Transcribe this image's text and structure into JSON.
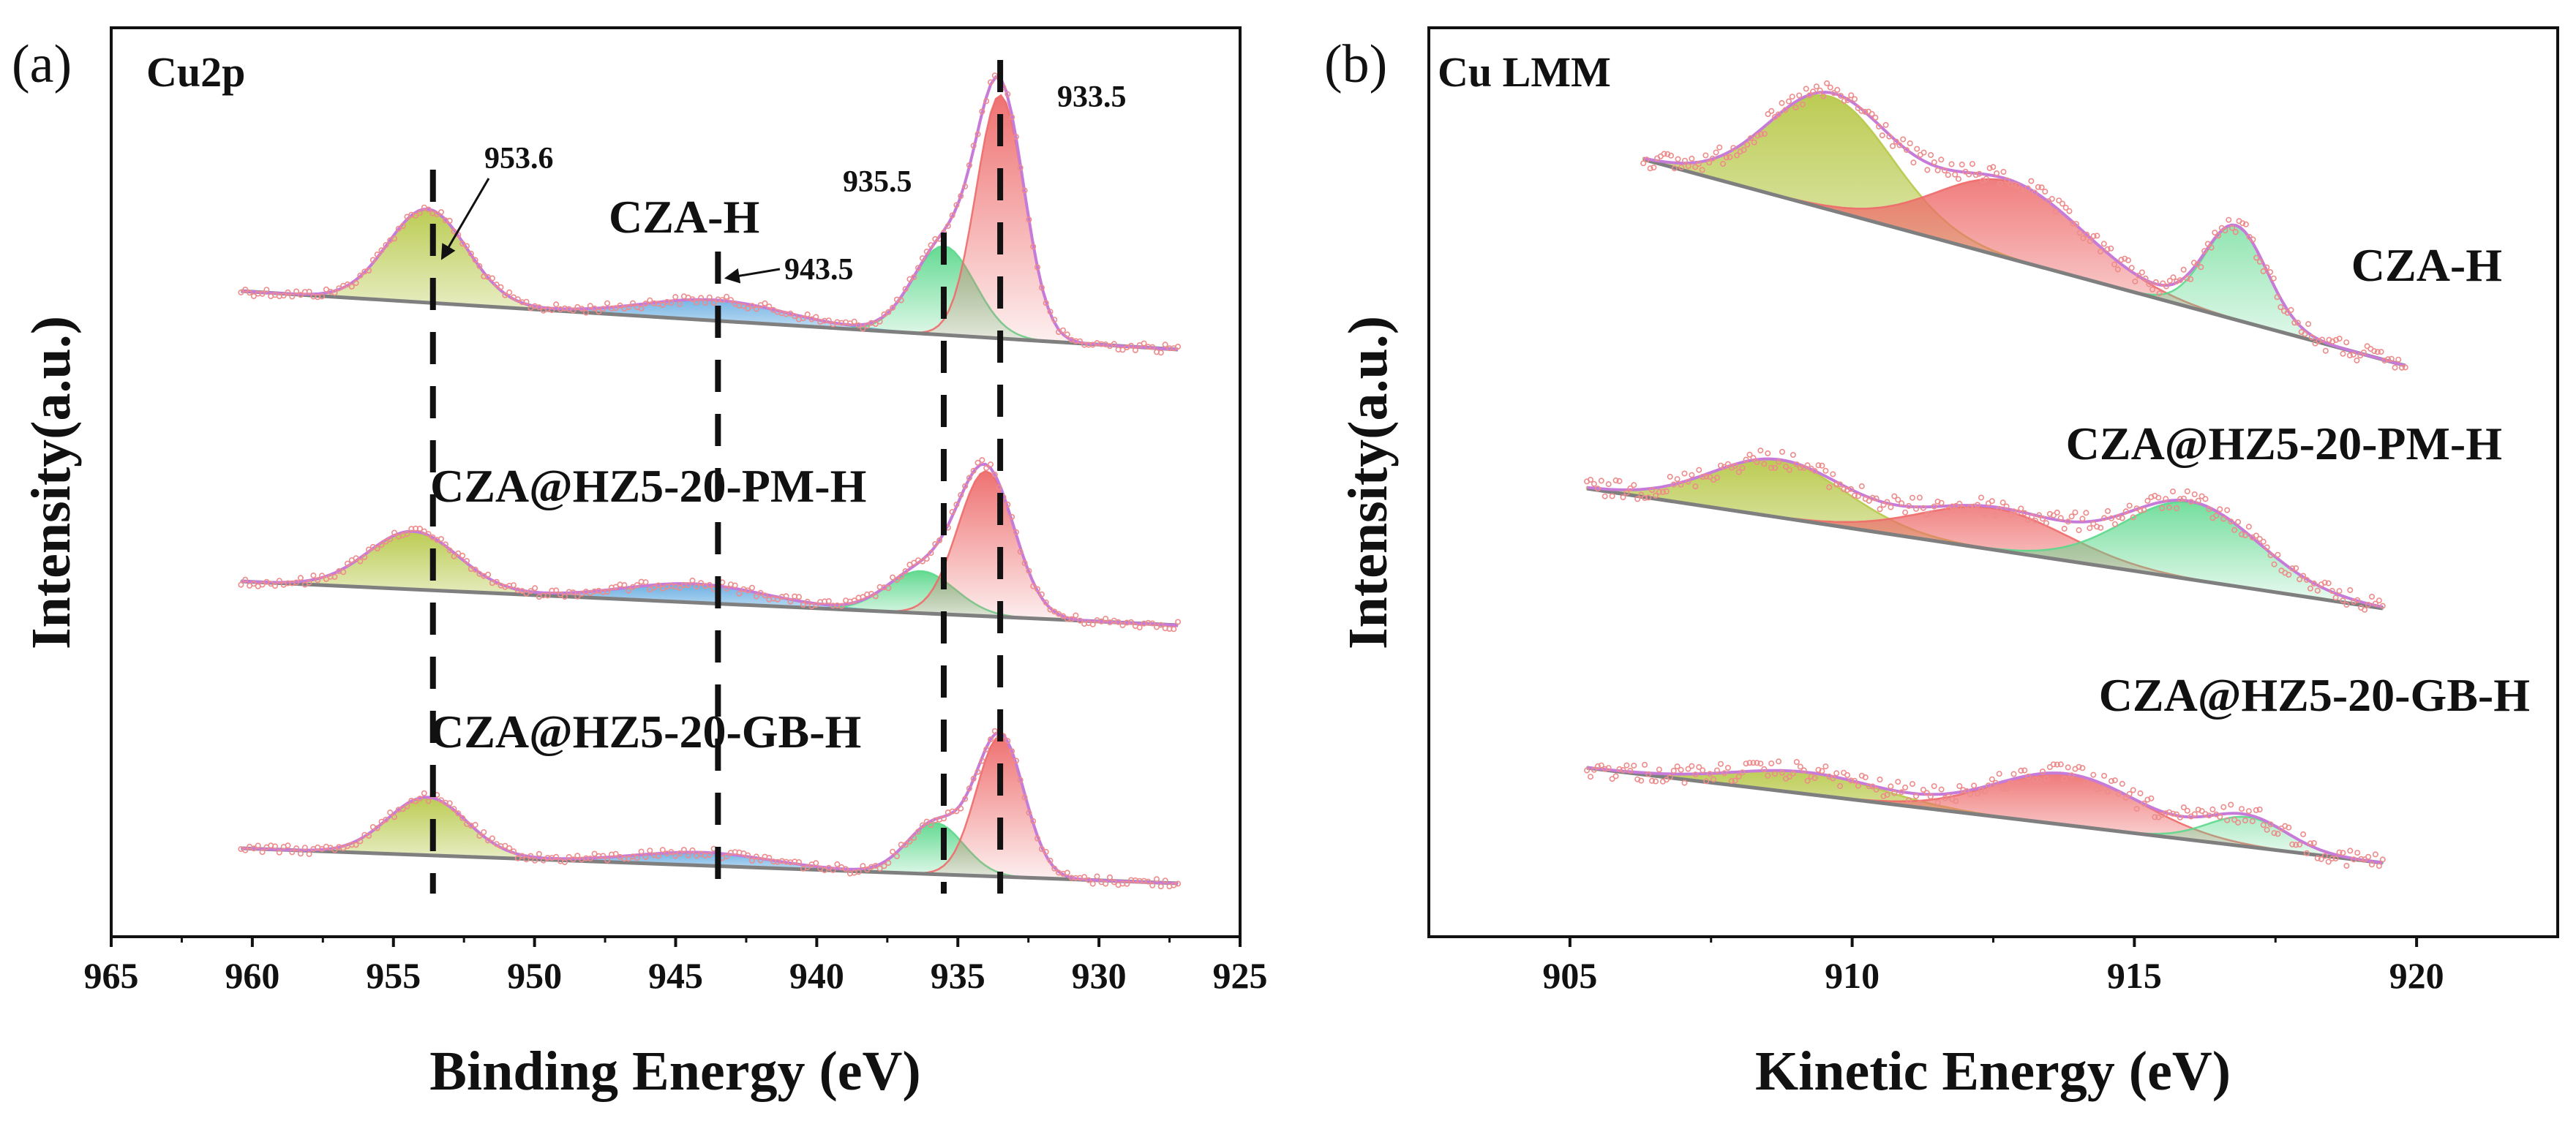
{
  "chart_data": [
    {
      "type": "line",
      "panel_label": "(a)",
      "corner_label": "Cu2p",
      "xlabel": "Binding Energy (eV)",
      "ylabel": "Intensity(a.u.)",
      "xlim": [
        965,
        925
      ],
      "reversed_x": true,
      "x_ticks": [
        "965",
        "960",
        "955",
        "950",
        "945",
        "940",
        "935",
        "930",
        "925"
      ],
      "x_range": [
        960.4,
        927.2
      ],
      "reference_lines": [
        953.6,
        943.5,
        935.5,
        933.5
      ],
      "series": [
        {
          "name": "CZA-H",
          "baseline_start": 0.38,
          "baseline_end": 0.0,
          "components": [
            {
              "center": 953.8,
              "width": 1.4,
              "height": 1.0,
              "color": "#b8c94a"
            },
            {
              "center": 943.6,
              "width": 2.5,
              "height": 0.22,
              "color": "#5aa6df"
            },
            {
              "center": 935.5,
              "width": 1.1,
              "height": 0.95,
              "color": "#5cd88c"
            },
            {
              "center": 933.5,
              "width": 0.85,
              "height": 2.6,
              "color": "#ee6a6a"
            }
          ]
        },
        {
          "name": "CZA@HZ5-20-PM-H",
          "baseline_start": 0.3,
          "baseline_end": 0.0,
          "components": [
            {
              "center": 954.3,
              "width": 1.6,
              "height": 0.62,
              "color": "#b8c94a"
            },
            {
              "center": 944.3,
              "width": 2.5,
              "height": 0.2,
              "color": "#5aa6df"
            },
            {
              "center": 936.3,
              "width": 1.2,
              "height": 0.45,
              "color": "#5cd88c"
            },
            {
              "center": 934.0,
              "width": 1.0,
              "height": 1.55,
              "color": "#ee6a6a"
            }
          ]
        },
        {
          "name": "CZA@HZ5-20-GB-H",
          "baseline_start": 0.22,
          "baseline_end": 0.0,
          "components": [
            {
              "center": 953.8,
              "width": 1.4,
              "height": 0.62,
              "color": "#b8c94a"
            },
            {
              "center": 944.0,
              "width": 2.4,
              "height": 0.14,
              "color": "#5aa6df"
            },
            {
              "center": 935.8,
              "width": 1.0,
              "height": 0.55,
              "color": "#5cd88c"
            },
            {
              "center": 933.5,
              "width": 0.85,
              "height": 1.5,
              "color": "#ee6a6a"
            }
          ]
        }
      ],
      "annotations": [
        {
          "text": "953.6",
          "x": 953.6
        },
        {
          "text": "943.5",
          "x": 943.5
        },
        {
          "text": "935.5",
          "x": 935.5
        },
        {
          "text": "933.5",
          "x": 933.5
        }
      ]
    },
    {
      "type": "line",
      "panel_label": "(b)",
      "corner_label": "Cu LMM",
      "xlabel": "Kinetic Energy (eV)",
      "ylabel": "Intensity(a.u.)",
      "xlim": [
        902.5,
        922.5
      ],
      "reversed_x": false,
      "x_ticks": [
        "905",
        "910",
        "915",
        "920"
      ],
      "series": [
        {
          "name": "CZA-H",
          "x_range": [
            906.3,
            919.8
          ],
          "baseline_start": 2.0,
          "baseline_end": 0.0,
          "components": [
            {
              "center": 909.6,
              "width": 1.1,
              "height": 1.15,
              "color": "#b8c94a"
            },
            {
              "center": 912.8,
              "width": 1.3,
              "height": 0.78,
              "color": "#ee6a6a"
            },
            {
              "center": 916.8,
              "width": 0.55,
              "height": 0.95,
              "color": "#5cd88c"
            }
          ]
        },
        {
          "name": "CZA@HZ5-20-PM-H",
          "x_range": [
            905.3,
            919.4
          ],
          "baseline_start": 1.25,
          "baseline_end": 0.0,
          "components": [
            {
              "center": 908.7,
              "width": 1.2,
              "height": 0.58,
              "color": "#b8c94a"
            },
            {
              "center": 912.5,
              "width": 1.3,
              "height": 0.42,
              "color": "#ee6a6a"
            },
            {
              "center": 916.0,
              "width": 1.2,
              "height": 0.78,
              "color": "#5cd88c"
            }
          ]
        },
        {
          "name": "CZA@HZ5-20-GB-H",
          "x_range": [
            905.3,
            919.4
          ],
          "baseline_start": 0.95,
          "baseline_end": 0.0,
          "components": [
            {
              "center": 909.2,
              "width": 1.3,
              "height": 0.22,
              "color": "#b8c94a"
            },
            {
              "center": 913.8,
              "width": 1.3,
              "height": 0.52,
              "color": "#ee6a6a"
            },
            {
              "center": 917.0,
              "width": 0.7,
              "height": 0.3,
              "color": "#5cd88c"
            }
          ]
        }
      ]
    }
  ]
}
